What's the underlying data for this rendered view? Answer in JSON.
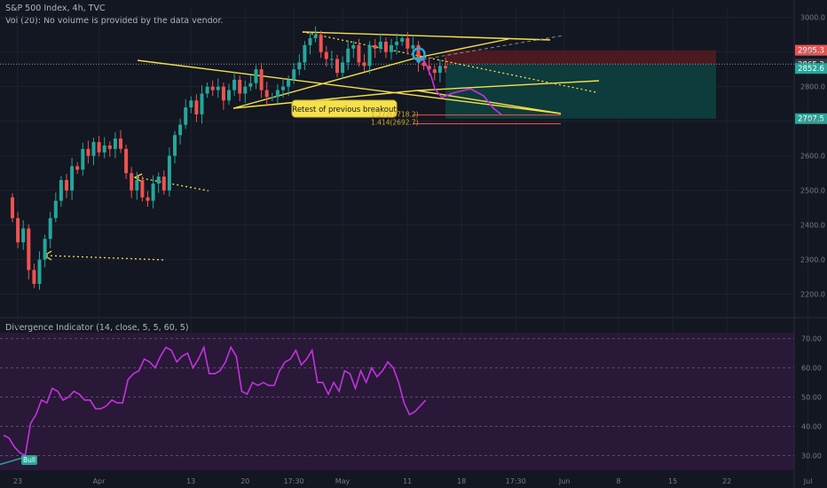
{
  "header": {
    "main_title": "S&P 500 Index, 4h, TVC",
    "volume_note": "Vol (20): No volume is provided by the data vendor.",
    "indicator_title": "Divergence Indicator (14, close, 5, 5, 60, 5)"
  },
  "colors": {
    "background": "#131722",
    "up": "#26a69a",
    "down": "#ef5350",
    "trendline": "#f5e14a",
    "projection": "#c233e0",
    "oscillator": "#c233e0",
    "osc_bg": "#2a1838",
    "tp_zone": "#0e3b3c",
    "sl_zone": "#4a1a21",
    "marker": "#2aa8d8"
  },
  "chart_data": [
    {
      "type": "candlestick",
      "title": "S&P 500 Index, 4h, TVC",
      "xlim": [
        0,
        156
      ],
      "ylim": [
        2140,
        3030
      ],
      "yticks": [
        2200,
        2300,
        2400,
        2500,
        2600,
        2700,
        2800,
        2900,
        3000
      ],
      "xtick_labels": [
        {
          "x": 0,
          "label": "23"
        },
        {
          "x": 15,
          "label": "Apr"
        },
        {
          "x": 32,
          "label": "13"
        },
        {
          "x": 42,
          "label": "20"
        },
        {
          "x": 51,
          "label": "17:30"
        },
        {
          "x": 60,
          "label": "May"
        },
        {
          "x": 72,
          "label": "11"
        },
        {
          "x": 82,
          "label": "18"
        },
        {
          "x": 92,
          "label": "17:30"
        },
        {
          "x": 101,
          "label": "Jun"
        },
        {
          "x": 111,
          "label": "8"
        },
        {
          "x": 121,
          "label": "15"
        },
        {
          "x": 131,
          "label": "22"
        },
        {
          "x": 146,
          "label": "Jul"
        }
      ],
      "closes": [
        2420,
        2350,
        2390,
        2270,
        2230,
        2300,
        2360,
        2420,
        2470,
        2530,
        2500,
        2570,
        2560,
        2620,
        2600,
        2640,
        2610,
        2630,
        2620,
        2650,
        2620,
        2550,
        2500,
        2530,
        2480,
        2470,
        2520,
        2540,
        2500,
        2600,
        2660,
        2690,
        2740,
        2760,
        2720,
        2780,
        2800,
        2790,
        2800,
        2760,
        2790,
        2820,
        2780,
        2800,
        2810,
        2850,
        2790,
        2770,
        2770,
        2790,
        2800,
        2820,
        2850,
        2870,
        2920,
        2940,
        2950,
        2900,
        2880,
        2880,
        2840,
        2870,
        2910,
        2920,
        2870,
        2860,
        2920,
        2910,
        2930,
        2900,
        2920,
        2930,
        2940,
        2910,
        2920,
        2870,
        2860,
        2850,
        2840,
        2860,
        2853
      ],
      "price_tags": [
        {
          "label": "2905.3",
          "value": 2905.3,
          "color": "#ef5350"
        },
        {
          "label": "2865.2",
          "value": 2865.2,
          "color": "#363a45"
        },
        {
          "label": "2852.6",
          "value": 2852.6,
          "color": "#26a69a"
        },
        {
          "label": "2707.5",
          "value": 2707.5,
          "color": "#26a69a"
        }
      ],
      "position_box": {
        "x_start": 80,
        "x_end": 130,
        "entry": 2865.2,
        "stop": 2905.3,
        "target": 2707.5
      },
      "annotations": {
        "callout": "Retest of previous breakout",
        "fib_upper": "1.272(2718.2)",
        "fib_lower": "1.414(2692.7)"
      }
    },
    {
      "type": "line",
      "title": "Divergence Indicator (14, close, 5, 5, 60, 5)",
      "ylim": [
        25,
        72
      ],
      "yticks": [
        30,
        40,
        50,
        60,
        70
      ],
      "tick_labels": [
        "30.00",
        "40.00",
        "50.00",
        "60.00",
        "70.00"
      ],
      "values": [
        37,
        36,
        33,
        31,
        30,
        41,
        44,
        49,
        48,
        53,
        52,
        49,
        50,
        52,
        51,
        49,
        49,
        46,
        46,
        47,
        49,
        48,
        48,
        56,
        58,
        59,
        63,
        62,
        60,
        64,
        67,
        66,
        62,
        64,
        65,
        60,
        63,
        67,
        58,
        58,
        59,
        62,
        67,
        64,
        52,
        51,
        55,
        54,
        55,
        54,
        54,
        59,
        62,
        63,
        66,
        61,
        63,
        66,
        55,
        55,
        51,
        55,
        52,
        59,
        58,
        53,
        59,
        55,
        60,
        57,
        59,
        62,
        60,
        55,
        48,
        44,
        45,
        47,
        49
      ],
      "divergence_label": "Bull"
    }
  ]
}
